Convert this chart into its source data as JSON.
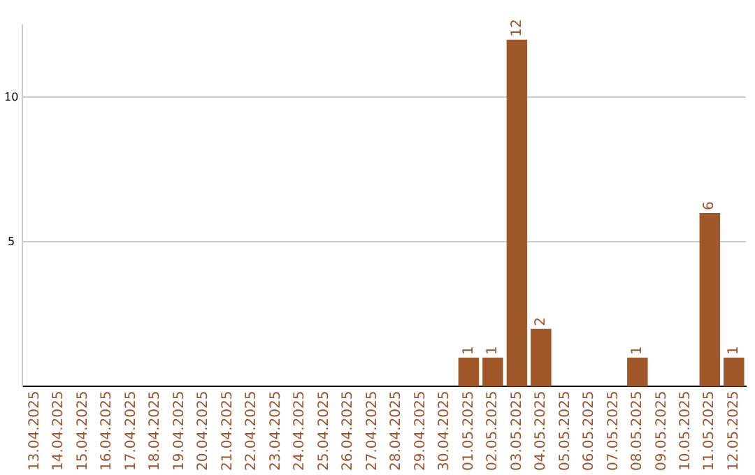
{
  "chart_data": {
    "type": "bar",
    "categories": [
      "13.04.2025",
      "14.04.2025",
      "15.04.2025",
      "16.04.2025",
      "17.04.2025",
      "18.04.2025",
      "19.04.2025",
      "20.04.2025",
      "21.04.2025",
      "22.04.2025",
      "23.04.2025",
      "24.04.2025",
      "25.04.2025",
      "26.04.2025",
      "27.04.2025",
      "28.04.2025",
      "29.04.2025",
      "30.04.2025",
      "01.05.2025",
      "02.05.2025",
      "03.05.2025",
      "04.05.2025",
      "05.05.2025",
      "06.05.2025",
      "07.05.2025",
      "08.05.2025",
      "09.05.2025",
      "10.05.2025",
      "11.05.2025",
      "12.05.2025"
    ],
    "values": [
      0,
      0,
      0,
      0,
      0,
      0,
      0,
      0,
      0,
      0,
      0,
      0,
      0,
      0,
      0,
      0,
      0,
      0,
      1,
      1,
      12,
      2,
      0,
      0,
      0,
      1,
      0,
      0,
      6,
      1
    ],
    "value_labels": [
      null,
      null,
      null,
      null,
      null,
      null,
      null,
      null,
      null,
      null,
      null,
      null,
      null,
      null,
      null,
      null,
      null,
      null,
      "1",
      "1",
      "12",
      "2",
      null,
      null,
      null,
      "1",
      null,
      null,
      "6",
      "1"
    ],
    "color": "#a0582a",
    "ylim": [
      0,
      12.5
    ],
    "yticks": [
      5,
      10
    ],
    "grid": "y",
    "legend": false
  }
}
